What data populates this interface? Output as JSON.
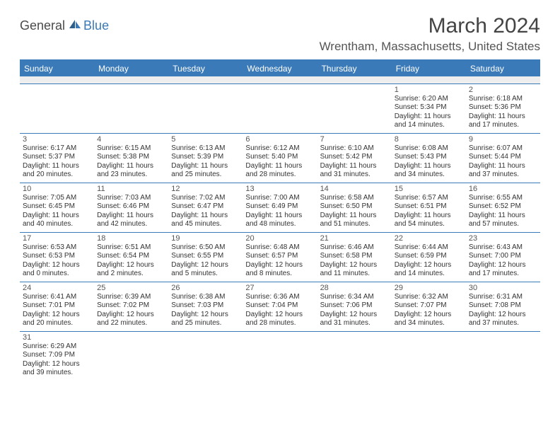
{
  "brand": {
    "part1": "General",
    "part2": "Blue"
  },
  "title": "March 2024",
  "location": "Wrentham, Massachusetts, United States",
  "colors": {
    "header_bg": "#3a7ab8",
    "header_text": "#ffffff",
    "border": "#3a7ab8",
    "blank_bg": "#eeeeee",
    "text": "#333333",
    "logo_gray": "#4a4a4a",
    "logo_blue": "#3a7ab8"
  },
  "day_headers": [
    "Sunday",
    "Monday",
    "Tuesday",
    "Wednesday",
    "Thursday",
    "Friday",
    "Saturday"
  ],
  "weeks": [
    [
      null,
      null,
      null,
      null,
      null,
      {
        "n": "1",
        "sr": "6:20 AM",
        "ss": "5:34 PM",
        "dl": "11 hours and 14 minutes."
      },
      {
        "n": "2",
        "sr": "6:18 AM",
        "ss": "5:36 PM",
        "dl": "11 hours and 17 minutes."
      }
    ],
    [
      {
        "n": "3",
        "sr": "6:17 AM",
        "ss": "5:37 PM",
        "dl": "11 hours and 20 minutes."
      },
      {
        "n": "4",
        "sr": "6:15 AM",
        "ss": "5:38 PM",
        "dl": "11 hours and 23 minutes."
      },
      {
        "n": "5",
        "sr": "6:13 AM",
        "ss": "5:39 PM",
        "dl": "11 hours and 25 minutes."
      },
      {
        "n": "6",
        "sr": "6:12 AM",
        "ss": "5:40 PM",
        "dl": "11 hours and 28 minutes."
      },
      {
        "n": "7",
        "sr": "6:10 AM",
        "ss": "5:42 PM",
        "dl": "11 hours and 31 minutes."
      },
      {
        "n": "8",
        "sr": "6:08 AM",
        "ss": "5:43 PM",
        "dl": "11 hours and 34 minutes."
      },
      {
        "n": "9",
        "sr": "6:07 AM",
        "ss": "5:44 PM",
        "dl": "11 hours and 37 minutes."
      }
    ],
    [
      {
        "n": "10",
        "sr": "7:05 AM",
        "ss": "6:45 PM",
        "dl": "11 hours and 40 minutes."
      },
      {
        "n": "11",
        "sr": "7:03 AM",
        "ss": "6:46 PM",
        "dl": "11 hours and 42 minutes."
      },
      {
        "n": "12",
        "sr": "7:02 AM",
        "ss": "6:47 PM",
        "dl": "11 hours and 45 minutes."
      },
      {
        "n": "13",
        "sr": "7:00 AM",
        "ss": "6:49 PM",
        "dl": "11 hours and 48 minutes."
      },
      {
        "n": "14",
        "sr": "6:58 AM",
        "ss": "6:50 PM",
        "dl": "11 hours and 51 minutes."
      },
      {
        "n": "15",
        "sr": "6:57 AM",
        "ss": "6:51 PM",
        "dl": "11 hours and 54 minutes."
      },
      {
        "n": "16",
        "sr": "6:55 AM",
        "ss": "6:52 PM",
        "dl": "11 hours and 57 minutes."
      }
    ],
    [
      {
        "n": "17",
        "sr": "6:53 AM",
        "ss": "6:53 PM",
        "dl": "12 hours and 0 minutes."
      },
      {
        "n": "18",
        "sr": "6:51 AM",
        "ss": "6:54 PM",
        "dl": "12 hours and 2 minutes."
      },
      {
        "n": "19",
        "sr": "6:50 AM",
        "ss": "6:55 PM",
        "dl": "12 hours and 5 minutes."
      },
      {
        "n": "20",
        "sr": "6:48 AM",
        "ss": "6:57 PM",
        "dl": "12 hours and 8 minutes."
      },
      {
        "n": "21",
        "sr": "6:46 AM",
        "ss": "6:58 PM",
        "dl": "12 hours and 11 minutes."
      },
      {
        "n": "22",
        "sr": "6:44 AM",
        "ss": "6:59 PM",
        "dl": "12 hours and 14 minutes."
      },
      {
        "n": "23",
        "sr": "6:43 AM",
        "ss": "7:00 PM",
        "dl": "12 hours and 17 minutes."
      }
    ],
    [
      {
        "n": "24",
        "sr": "6:41 AM",
        "ss": "7:01 PM",
        "dl": "12 hours and 20 minutes."
      },
      {
        "n": "25",
        "sr": "6:39 AM",
        "ss": "7:02 PM",
        "dl": "12 hours and 22 minutes."
      },
      {
        "n": "26",
        "sr": "6:38 AM",
        "ss": "7:03 PM",
        "dl": "12 hours and 25 minutes."
      },
      {
        "n": "27",
        "sr": "6:36 AM",
        "ss": "7:04 PM",
        "dl": "12 hours and 28 minutes."
      },
      {
        "n": "28",
        "sr": "6:34 AM",
        "ss": "7:06 PM",
        "dl": "12 hours and 31 minutes."
      },
      {
        "n": "29",
        "sr": "6:32 AM",
        "ss": "7:07 PM",
        "dl": "12 hours and 34 minutes."
      },
      {
        "n": "30",
        "sr": "6:31 AM",
        "ss": "7:08 PM",
        "dl": "12 hours and 37 minutes."
      }
    ],
    [
      {
        "n": "31",
        "sr": "6:29 AM",
        "ss": "7:09 PM",
        "dl": "12 hours and 39 minutes."
      },
      null,
      null,
      null,
      null,
      null,
      null
    ]
  ],
  "labels": {
    "sunrise": "Sunrise:",
    "sunset": "Sunset:",
    "daylight": "Daylight:"
  }
}
